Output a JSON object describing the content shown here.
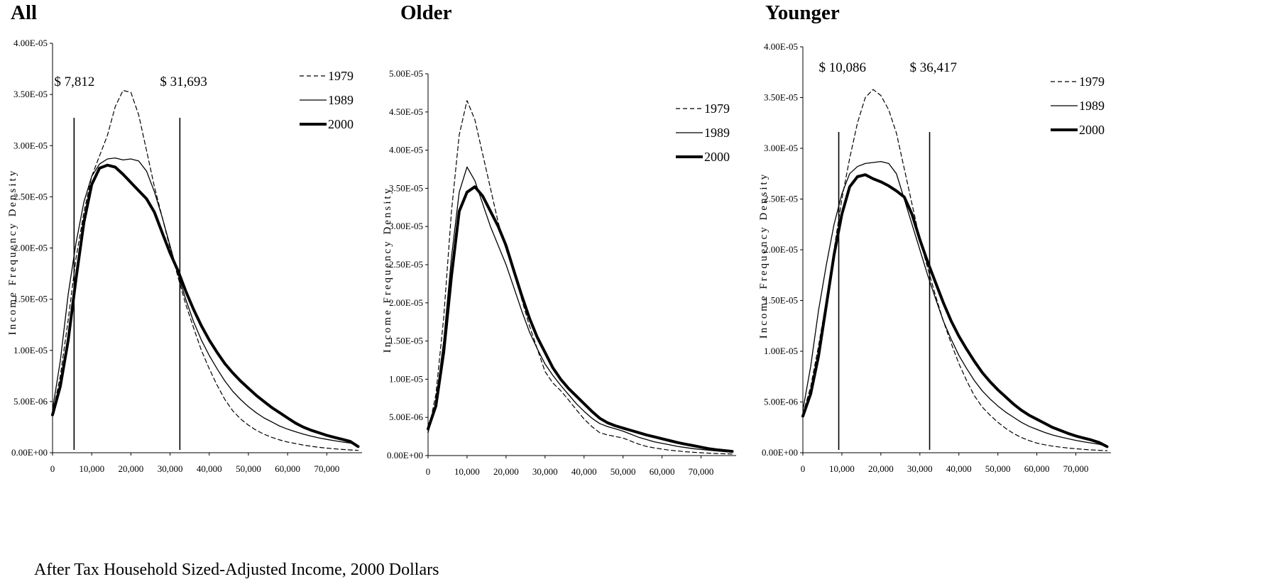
{
  "panels_meta": {
    "xlabel": "After Tax Household Sized-Adjusted Income, 2000 Dollars"
  },
  "chart_data": [
    {
      "type": "line",
      "title": "All",
      "ylabel": "Income Frequency Density",
      "xlim": [
        0,
        79000
      ],
      "ylim": [
        0,
        4e-05
      ],
      "x_ticks": [
        "0",
        "10,000",
        "20,000",
        "30,000",
        "40,000",
        "50,000",
        "60,000",
        "70,000"
      ],
      "y_ticks": [
        "0.00E+00",
        "5.00E-06",
        "1.00E-05",
        "1.50E-05",
        "2.00E-05",
        "2.50E-05",
        "3.00E-05",
        "3.50E-05",
        "4.00E-05"
      ],
      "cutoffs": [
        {
          "x": 5500,
          "label": "$ 7,812"
        },
        {
          "x": 32500,
          "label": "$ 31,693"
        }
      ],
      "series": [
        {
          "name": "1979",
          "style": "dashed",
          "x": [
            0,
            2000,
            4000,
            6000,
            8000,
            10000,
            12000,
            14000,
            16000,
            18000,
            20000,
            22000,
            24000,
            26000,
            28000,
            30000,
            32000,
            34000,
            36000,
            38000,
            40000,
            42000,
            44000,
            46000,
            48000,
            50000,
            52000,
            54000,
            56000,
            58000,
            60000,
            62000,
            64000,
            66000,
            68000,
            70000,
            72000,
            74000,
            76000,
            78000
          ],
          "y": [
            3.8e-06,
            7.5e-06,
            1.3e-05,
            1.9e-05,
            2.35e-05,
            2.7e-05,
            2.9e-05,
            3.1e-05,
            3.38e-05,
            3.54e-05,
            3.52e-05,
            3.3e-05,
            2.95e-05,
            2.6e-05,
            2.3e-05,
            2e-05,
            1.72e-05,
            1.45e-05,
            1.22e-05,
            1e-05,
            8.2e-06,
            6.6e-06,
            5.2e-06,
            4.1e-06,
            3.3e-06,
            2.7e-06,
            2.2e-06,
            1.8e-06,
            1.5e-06,
            1.25e-06,
            1.05e-06,
            9e-07,
            7.5e-07,
            6.3e-07,
            5.3e-07,
            4.5e-07,
            3.8e-07,
            3.2e-07,
            2.7e-07,
            2.3e-07
          ]
        },
        {
          "name": "1989",
          "style": "thin",
          "x": [
            0,
            2000,
            4000,
            6000,
            8000,
            10000,
            12000,
            14000,
            16000,
            18000,
            20000,
            22000,
            24000,
            26000,
            28000,
            30000,
            32000,
            34000,
            36000,
            38000,
            40000,
            42000,
            44000,
            46000,
            48000,
            50000,
            52000,
            54000,
            56000,
            58000,
            60000,
            62000,
            64000,
            66000,
            68000,
            70000,
            72000,
            74000,
            76000,
            78000
          ],
          "y": [
            4.2e-06,
            9e-06,
            1.55e-05,
            2.05e-05,
            2.45e-05,
            2.7e-05,
            2.82e-05,
            2.87e-05,
            2.88e-05,
            2.86e-05,
            2.87e-05,
            2.85e-05,
            2.75e-05,
            2.55e-05,
            2.3e-05,
            2.02e-05,
            1.75e-05,
            1.5e-05,
            1.28e-05,
            1.1e-05,
            9.5e-06,
            8.2e-06,
            7e-06,
            6e-06,
            5.2e-06,
            4.5e-06,
            3.9e-06,
            3.4e-06,
            3e-06,
            2.6e-06,
            2.3e-06,
            2.05e-06,
            1.82e-06,
            1.62e-06,
            1.45e-06,
            1.3e-06,
            1.17e-06,
            1.05e-06,
            9.5e-07,
            6.5e-07
          ]
        },
        {
          "name": "2000",
          "style": "thick",
          "x": [
            0,
            2000,
            4000,
            6000,
            8000,
            10000,
            12000,
            14000,
            16000,
            18000,
            20000,
            22000,
            24000,
            26000,
            28000,
            30000,
            32000,
            34000,
            36000,
            38000,
            40000,
            42000,
            44000,
            46000,
            48000,
            50000,
            52000,
            54000,
            56000,
            58000,
            60000,
            62000,
            64000,
            66000,
            68000,
            70000,
            72000,
            74000,
            76000,
            78000
          ],
          "y": [
            3.7e-06,
            6.5e-06,
            1.1e-05,
            1.7e-05,
            2.25e-05,
            2.62e-05,
            2.78e-05,
            2.81e-05,
            2.79e-05,
            2.72e-05,
            2.64e-05,
            2.56e-05,
            2.48e-05,
            2.35e-05,
            2.15e-05,
            1.95e-05,
            1.78e-05,
            1.58e-05,
            1.4e-05,
            1.24e-05,
            1.1e-05,
            9.8e-06,
            8.7e-06,
            7.8e-06,
            7e-06,
            6.3e-06,
            5.6e-06,
            5e-06,
            4.4e-06,
            3.9e-06,
            3.4e-06,
            2.9e-06,
            2.5e-06,
            2.2e-06,
            1.95e-06,
            1.7e-06,
            1.5e-06,
            1.3e-06,
            1.1e-06,
            6e-07
          ]
        }
      ]
    },
    {
      "type": "line",
      "title": "Older",
      "ylabel": "Income Frequency Density",
      "xlim": [
        0,
        79000
      ],
      "ylim": [
        0,
        5e-05
      ],
      "x_ticks": [
        "0",
        "10,000",
        "20,000",
        "30,000",
        "40,000",
        "50,000",
        "60,000",
        "70,000"
      ],
      "y_ticks": [
        "0.00E+00",
        "5.00E-06",
        "1.00E-05",
        "1.50E-05",
        "2.00E-05",
        "2.50E-05",
        "3.00E-05",
        "3.50E-05",
        "4.00E-05",
        "4.50E-05",
        "5.00E-05"
      ],
      "cutoffs": [],
      "series": [
        {
          "name": "1979",
          "style": "dashed",
          "x": [
            0,
            2000,
            4000,
            6000,
            8000,
            10000,
            12000,
            14000,
            16000,
            18000,
            20000,
            22000,
            24000,
            26000,
            28000,
            30000,
            32000,
            34000,
            36000,
            38000,
            40000,
            42000,
            44000,
            46000,
            48000,
            50000,
            52000,
            54000,
            56000,
            58000,
            60000,
            62000,
            64000,
            66000,
            68000,
            70000,
            72000,
            74000,
            76000,
            78000
          ],
          "y": [
            3e-06,
            8e-06,
            1.8e-05,
            3.2e-05,
            4.2e-05,
            4.65e-05,
            4.4e-05,
            3.95e-05,
            3.5e-05,
            3.05e-05,
            2.7e-05,
            2.4e-05,
            2.05e-05,
            1.7e-05,
            1.4e-05,
            1.1e-05,
            9.5e-06,
            8.5e-06,
            7.3e-06,
            6e-06,
            4.8e-06,
            3.8e-06,
            3e-06,
            2.7e-06,
            2.5e-06,
            2.3e-06,
            1.9e-06,
            1.5e-06,
            1.2e-06,
            1e-06,
            8.5e-07,
            7e-07,
            6e-07,
            5e-07,
            4.3e-07,
            3.7e-07,
            3.2e-07,
            2.7e-07,
            2.3e-07,
            2e-07
          ]
        },
        {
          "name": "1989",
          "style": "thin",
          "x": [
            0,
            2000,
            4000,
            6000,
            8000,
            10000,
            12000,
            14000,
            16000,
            18000,
            20000,
            22000,
            24000,
            26000,
            28000,
            30000,
            32000,
            34000,
            36000,
            38000,
            40000,
            42000,
            44000,
            46000,
            48000,
            50000,
            52000,
            54000,
            56000,
            58000,
            60000,
            62000,
            64000,
            66000,
            68000,
            70000,
            72000,
            74000,
            76000,
            78000
          ],
          "y": [
            3e-06,
            7e-06,
            1.5e-05,
            2.6e-05,
            3.45e-05,
            3.78e-05,
            3.6e-05,
            3.3e-05,
            3e-05,
            2.75e-05,
            2.5e-05,
            2.2e-05,
            1.9e-05,
            1.62e-05,
            1.4e-05,
            1.2e-05,
            1.05e-05,
            9.2e-06,
            8e-06,
            6.8e-06,
            5.8e-06,
            4.9e-06,
            4.2e-06,
            3.8e-06,
            3.5e-06,
            3.2e-06,
            2.8e-06,
            2.4e-06,
            2.1e-06,
            1.8e-06,
            1.6e-06,
            1.4e-06,
            1.2e-06,
            1.05e-06,
            9e-07,
            8e-07,
            7e-07,
            6e-07,
            5.2e-07,
            4.5e-07
          ]
        },
        {
          "name": "2000",
          "style": "thick",
          "x": [
            0,
            2000,
            4000,
            6000,
            8000,
            10000,
            12000,
            14000,
            16000,
            18000,
            20000,
            22000,
            24000,
            26000,
            28000,
            30000,
            32000,
            34000,
            36000,
            38000,
            40000,
            42000,
            44000,
            46000,
            48000,
            50000,
            52000,
            54000,
            56000,
            58000,
            60000,
            62000,
            64000,
            66000,
            68000,
            70000,
            72000,
            74000,
            76000,
            78000
          ],
          "y": [
            3.5e-06,
            6.5e-06,
            1.35e-05,
            2.35e-05,
            3.2e-05,
            3.45e-05,
            3.52e-05,
            3.4e-05,
            3.2e-05,
            3e-05,
            2.75e-05,
            2.42e-05,
            2.1e-05,
            1.8e-05,
            1.55e-05,
            1.35e-05,
            1.15e-05,
            1e-05,
            8.8e-06,
            7.8e-06,
            6.8e-06,
            5.8e-06,
            4.9e-06,
            4.3e-06,
            3.9e-06,
            3.6e-06,
            3.3e-06,
            3e-06,
            2.7e-06,
            2.45e-06,
            2.2e-06,
            1.95e-06,
            1.7e-06,
            1.5e-06,
            1.3e-06,
            1.1e-06,
            9e-07,
            7.5e-07,
            6.5e-07,
            5.5e-07
          ]
        }
      ]
    },
    {
      "type": "line",
      "title": "Younger",
      "ylabel": "Income Frequency Density",
      "xlim": [
        0,
        79000
      ],
      "ylim": [
        0,
        4e-05
      ],
      "x_ticks": [
        "0",
        "10,000",
        "20,000",
        "30,000",
        "40,000",
        "50,000",
        "60,000",
        "70,000"
      ],
      "y_ticks": [
        "0.00E+00",
        "5.00E-06",
        "1.00E-05",
        "1.50E-05",
        "2.00E-05",
        "2.50E-05",
        "3.00E-05",
        "3.50E-05",
        "4.00E-05"
      ],
      "cutoffs": [
        {
          "x": 9200,
          "label": "$ 10,086"
        },
        {
          "x": 32500,
          "label": "$ 36,417"
        }
      ],
      "series": [
        {
          "name": "1979",
          "style": "dashed",
          "x": [
            0,
            2000,
            4000,
            6000,
            8000,
            10000,
            12000,
            14000,
            16000,
            18000,
            20000,
            22000,
            24000,
            26000,
            28000,
            30000,
            32000,
            34000,
            36000,
            38000,
            40000,
            42000,
            44000,
            46000,
            48000,
            50000,
            52000,
            54000,
            56000,
            58000,
            60000,
            62000,
            64000,
            66000,
            68000,
            70000,
            72000,
            74000,
            76000,
            78000
          ],
          "y": [
            3.8e-06,
            6.5e-06,
            1.05e-05,
            1.5e-05,
            2e-05,
            2.5e-05,
            2.9e-05,
            3.25e-05,
            3.5e-05,
            3.58e-05,
            3.52e-05,
            3.38e-05,
            3.15e-05,
            2.8e-05,
            2.45e-05,
            2.1e-05,
            1.82e-05,
            1.55e-05,
            1.3e-05,
            1.08e-05,
            8.8e-06,
            7.1e-06,
            5.6e-06,
            4.5e-06,
            3.7e-06,
            3e-06,
            2.4e-06,
            1.9e-06,
            1.5e-06,
            1.2e-06,
            9.5e-07,
            7.8e-07,
            6.5e-07,
            5.5e-07,
            4.6e-07,
            3.9e-07,
            3.3e-07,
            2.8e-07,
            2.4e-07,
            2e-07
          ]
        },
        {
          "name": "1989",
          "style": "thin",
          "x": [
            0,
            2000,
            4000,
            6000,
            8000,
            10000,
            12000,
            14000,
            16000,
            18000,
            20000,
            22000,
            24000,
            26000,
            28000,
            30000,
            32000,
            34000,
            36000,
            38000,
            40000,
            42000,
            44000,
            46000,
            48000,
            50000,
            52000,
            54000,
            56000,
            58000,
            60000,
            62000,
            64000,
            66000,
            68000,
            70000,
            72000,
            74000,
            76000,
            78000
          ],
          "y": [
            4.2e-06,
            8.5e-06,
            1.4e-05,
            1.85e-05,
            2.25e-05,
            2.55e-05,
            2.75e-05,
            2.82e-05,
            2.85e-05,
            2.86e-05,
            2.87e-05,
            2.85e-05,
            2.75e-05,
            2.5e-05,
            2.25e-05,
            2e-05,
            1.75e-05,
            1.52e-05,
            1.3e-05,
            1.12e-05,
            9.6e-06,
            8.3e-06,
            7.1e-06,
            6.1e-06,
            5.3e-06,
            4.6e-06,
            4e-06,
            3.5e-06,
            3e-06,
            2.6e-06,
            2.3e-06,
            2e-06,
            1.75e-06,
            1.55e-06,
            1.38e-06,
            1.22e-06,
            1.08e-06,
            9.5e-07,
            8.3e-07,
            6e-07
          ]
        },
        {
          "name": "2000",
          "style": "thick",
          "x": [
            0,
            2000,
            4000,
            6000,
            8000,
            10000,
            12000,
            14000,
            16000,
            18000,
            20000,
            22000,
            24000,
            26000,
            28000,
            30000,
            32000,
            34000,
            36000,
            38000,
            40000,
            42000,
            44000,
            46000,
            48000,
            50000,
            52000,
            54000,
            56000,
            58000,
            60000,
            62000,
            64000,
            66000,
            68000,
            70000,
            72000,
            74000,
            76000,
            78000
          ],
          "y": [
            3.6e-06,
            5.8e-06,
            9.5e-06,
            1.45e-05,
            1.95e-05,
            2.35e-05,
            2.62e-05,
            2.72e-05,
            2.74e-05,
            2.7e-05,
            2.67e-05,
            2.63e-05,
            2.58e-05,
            2.52e-05,
            2.35e-05,
            2.1e-05,
            1.88e-05,
            1.68e-05,
            1.48e-05,
            1.3e-05,
            1.15e-05,
            1.02e-05,
            9e-06,
            7.9e-06,
            7e-06,
            6.2e-06,
            5.5e-06,
            4.8e-06,
            4.2e-06,
            3.7e-06,
            3.3e-06,
            2.9e-06,
            2.5e-06,
            2.2e-06,
            1.9e-06,
            1.65e-06,
            1.45e-06,
            1.25e-06,
            1e-06,
            6e-07
          ]
        }
      ]
    }
  ]
}
